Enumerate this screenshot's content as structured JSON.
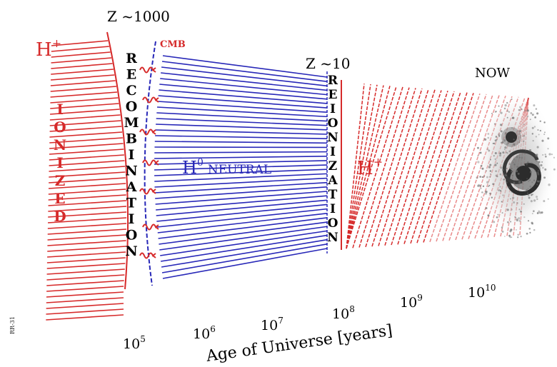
{
  "labels": {
    "z_recombination": "Z ~1000",
    "z_reionization": "Z ~10",
    "now": "NOW",
    "cmb": "CMB",
    "ionized_left_ion": "H",
    "ionized_left_sup": "+",
    "ionized_right_ion": "H",
    "ionized_right_sup": "+",
    "neutral_ion": "H",
    "neutral_sup": "0",
    "neutral_word": "NEUTRAL",
    "side_credit": "RR-31"
  },
  "vertical_words": {
    "ionized": "IONIZED",
    "recombination": "RECOMBINATION",
    "reionization": "REIONIZATION"
  },
  "axis": {
    "title": "Age of Universe [years]",
    "ticks": [
      {
        "base": "10",
        "exp": "5"
      },
      {
        "base": "10",
        "exp": "6"
      },
      {
        "base": "10",
        "exp": "7"
      },
      {
        "base": "10",
        "exp": "8"
      },
      {
        "base": "10",
        "exp": "9"
      },
      {
        "base": "10",
        "exp": "10"
      }
    ]
  },
  "colors": {
    "ionized": "#d62a2a",
    "neutral": "#2828b8",
    "text": "#000000",
    "galaxy": "#3a3a3a"
  },
  "icons": [
    "cmb-photon-squiggle",
    "spiral-galaxy"
  ]
}
